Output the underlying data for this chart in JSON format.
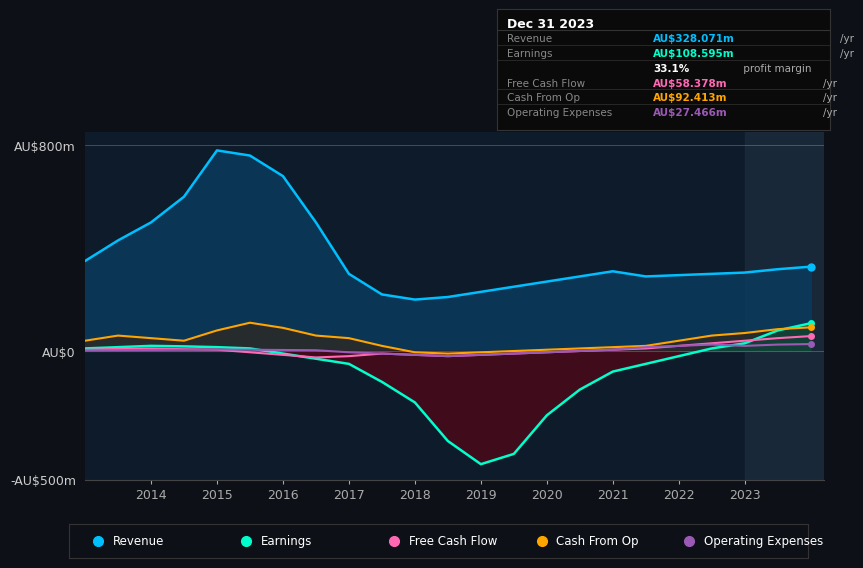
{
  "background_color": "#0d1117",
  "plot_bg_color": "#0d1b2a",
  "years": [
    2013,
    2013.5,
    2014,
    2014.5,
    2015,
    2015.5,
    2016,
    2016.5,
    2017,
    2017.5,
    2018,
    2018.5,
    2019,
    2019.5,
    2020,
    2020.5,
    2021,
    2021.5,
    2022,
    2022.5,
    2023,
    2023.5,
    2024
  ],
  "revenue": [
    350,
    430,
    500,
    600,
    780,
    760,
    680,
    500,
    300,
    220,
    200,
    210,
    230,
    250,
    270,
    290,
    310,
    290,
    295,
    300,
    305,
    318,
    328
  ],
  "earnings": [
    10,
    15,
    20,
    18,
    15,
    10,
    -10,
    -30,
    -50,
    -120,
    -200,
    -350,
    -440,
    -400,
    -250,
    -150,
    -80,
    -50,
    -20,
    10,
    30,
    80,
    108
  ],
  "free_cash_flow": [
    5,
    8,
    10,
    7,
    5,
    -5,
    -15,
    -25,
    -20,
    -10,
    -15,
    -20,
    -15,
    -10,
    -5,
    0,
    5,
    10,
    20,
    30,
    40,
    50,
    58
  ],
  "cash_from_op": [
    40,
    60,
    50,
    40,
    80,
    110,
    90,
    60,
    50,
    20,
    -5,
    -10,
    -5,
    0,
    5,
    10,
    15,
    20,
    40,
    60,
    70,
    85,
    92
  ],
  "op_expenses": [
    2,
    3,
    4,
    5,
    6,
    5,
    4,
    3,
    -5,
    -10,
    -15,
    -20,
    -15,
    -10,
    -5,
    0,
    5,
    15,
    20,
    25,
    20,
    25,
    27
  ],
  "revenue_color": "#00bfff",
  "earnings_color": "#00ffcc",
  "free_cash_flow_color": "#ff69b4",
  "cash_from_op_color": "#ffa500",
  "op_expenses_color": "#9b59b6",
  "revenue_fill_color": "#0a3a5c",
  "earnings_fill_pos_color": "#0a4a3a",
  "earnings_fill_neg_color": "#4a0a1a",
  "cash_from_op_fill_color": "#2a2a2a",
  "ylim_min": -500,
  "ylim_max": 850,
  "xlim_min": 2013,
  "xlim_max": 2024.2,
  "ytick_labels": [
    "AU$800m",
    "AU$0",
    "-AU$500m"
  ],
  "ytick_values": [
    800,
    0,
    -500
  ],
  "xtick_labels": [
    "2014",
    "2015",
    "2016",
    "2017",
    "2018",
    "2019",
    "2020",
    "2021",
    "2022",
    "2023"
  ],
  "xtick_values": [
    2014,
    2015,
    2016,
    2017,
    2018,
    2019,
    2020,
    2021,
    2022,
    2023
  ],
  "legend_items": [
    "Revenue",
    "Earnings",
    "Free Cash Flow",
    "Cash From Op",
    "Operating Expenses"
  ],
  "legend_colors": [
    "#00bfff",
    "#00ffcc",
    "#ff69b4",
    "#ffa500",
    "#9b59b6"
  ],
  "info_box": {
    "title": "Dec 31 2023",
    "rows": [
      {
        "label": "Revenue",
        "value": "AU$328.071m",
        "unit": "/yr",
        "color": "#00bfff"
      },
      {
        "label": "Earnings",
        "value": "AU$108.595m",
        "unit": "/yr",
        "color": "#00ffcc"
      },
      {
        "label": "",
        "value": "33.1%",
        "unit": " profit margin",
        "color": "#ffffff"
      },
      {
        "label": "Free Cash Flow",
        "value": "AU$58.378m",
        "unit": "/yr",
        "color": "#ff69b4"
      },
      {
        "label": "Cash From Op",
        "value": "AU$92.413m",
        "unit": "/yr",
        "color": "#ffa500"
      },
      {
        "label": "Operating Expenses",
        "value": "AU$27.466m",
        "unit": "/yr",
        "color": "#9b59b6"
      }
    ]
  },
  "highlight_rect_color": "#1a2a3a"
}
